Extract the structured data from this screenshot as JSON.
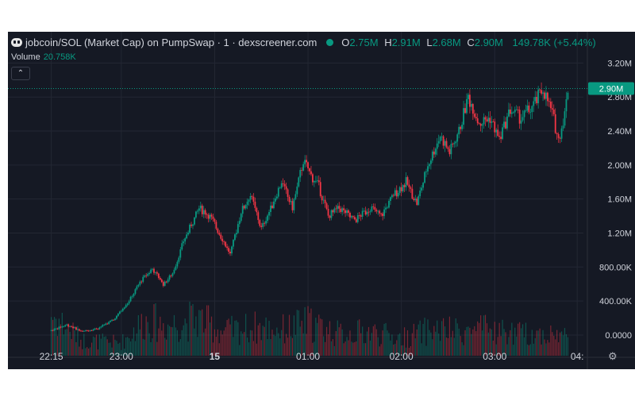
{
  "header": {
    "title": "jobcoin/SOL (Market Cap) on PumpSwap · 1 · dexscreener.com",
    "ohlc": [
      {
        "label": "O",
        "value": "2.75M"
      },
      {
        "label": "H",
        "value": "2.91M"
      },
      {
        "label": "L",
        "value": "2.68M"
      },
      {
        "label": "C",
        "value": "2.90M"
      }
    ],
    "change": "149.78K (+5.44%)"
  },
  "volume": {
    "label": "Volume",
    "value": "20.758K"
  },
  "colors": {
    "up": "#089981",
    "down": "#f23645",
    "background": "#151924",
    "grid": "#232733",
    "text": "#d1d4dc"
  },
  "icons": {
    "logo": "ghost-logo-icon",
    "collapse": "chevron-up-icon",
    "settings": "gear-icon",
    "left_tab": "chevron-right-icon"
  },
  "chart_data": {
    "type": "candlestick",
    "y_ticks": [
      "3.20M",
      "2.80M",
      "2.40M",
      "2.00M",
      "1.60M",
      "1.20M",
      "800.00K",
      "400.00K",
      "0.0000"
    ],
    "y_tick_values": [
      3200000,
      2800000,
      2400000,
      2000000,
      1600000,
      1200000,
      800000,
      400000,
      0
    ],
    "ylim": [
      -150000,
      3400000
    ],
    "x_ticks": [
      "22:15",
      "23:00",
      "15",
      "01:00",
      "02:00",
      "03:00",
      "04:"
    ],
    "x_tick_minutes": [
      0,
      45,
      105,
      165,
      225,
      285,
      338
    ],
    "xlim": [
      -10,
      342
    ],
    "last_price_label": "2.90M",
    "last_price_value": 2900000,
    "series": [
      {
        "name": "price",
        "points": [
          [
            0,
            55000
          ],
          [
            10,
            120000
          ],
          [
            20,
            40000
          ],
          [
            30,
            80000
          ],
          [
            40,
            180000
          ],
          [
            50,
            400000
          ],
          [
            58,
            650000
          ],
          [
            65,
            780000
          ],
          [
            72,
            600000
          ],
          [
            78,
            720000
          ],
          [
            85,
            1100000
          ],
          [
            95,
            1500000
          ],
          [
            102,
            1400000
          ],
          [
            108,
            1200000
          ],
          [
            115,
            950000
          ],
          [
            122,
            1450000
          ],
          [
            128,
            1650000
          ],
          [
            135,
            1250000
          ],
          [
            140,
            1450000
          ],
          [
            148,
            1800000
          ],
          [
            155,
            1500000
          ],
          [
            162,
            2050000
          ],
          [
            168,
            1850000
          ],
          [
            172,
            1750000
          ],
          [
            178,
            1400000
          ],
          [
            185,
            1500000
          ],
          [
            195,
            1350000
          ],
          [
            205,
            1500000
          ],
          [
            212,
            1400000
          ],
          [
            220,
            1650000
          ],
          [
            228,
            1800000
          ],
          [
            235,
            1550000
          ],
          [
            242,
            2000000
          ],
          [
            250,
            2350000
          ],
          [
            256,
            2150000
          ],
          [
            262,
            2400000
          ],
          [
            268,
            2800000
          ],
          [
            275,
            2500000
          ],
          [
            282,
            2550000
          ],
          [
            288,
            2300000
          ],
          [
            295,
            2650000
          ],
          [
            302,
            2550000
          ],
          [
            310,
            2700000
          ],
          [
            316,
            2900000
          ],
          [
            322,
            2600000
          ],
          [
            326,
            2300000
          ],
          [
            330,
            2600000
          ],
          [
            332,
            2900000
          ]
        ]
      },
      {
        "name": "volume",
        "points": [
          [
            0,
            0.95
          ],
          [
            20,
            0.35
          ],
          [
            45,
            0.3
          ],
          [
            60,
            0.8
          ],
          [
            75,
            0.7
          ],
          [
            95,
            0.85
          ],
          [
            110,
            0.55
          ],
          [
            130,
            0.65
          ],
          [
            150,
            0.6
          ],
          [
            165,
            0.75
          ],
          [
            185,
            0.5
          ],
          [
            205,
            0.55
          ],
          [
            225,
            0.4
          ],
          [
            245,
            0.6
          ],
          [
            260,
            0.55
          ],
          [
            280,
            0.6
          ],
          [
            300,
            0.5
          ],
          [
            315,
            0.5
          ],
          [
            332,
            0.45
          ]
        ]
      }
    ]
  }
}
